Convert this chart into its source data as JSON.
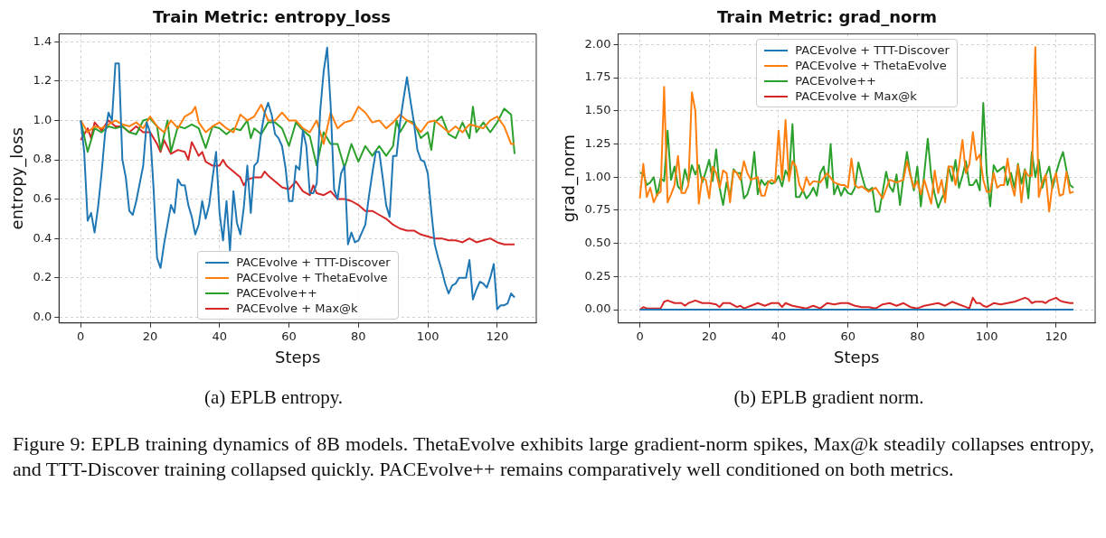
{
  "chart_data": [
    {
      "type": "line",
      "title": "Train Metric: entropy_loss",
      "xlabel": "Steps",
      "ylabel": "entropy_loss",
      "x": [
        0,
        1,
        2,
        3,
        4,
        5,
        6,
        7,
        8,
        9,
        10,
        11,
        12,
        13,
        14,
        15,
        16,
        17,
        18,
        19,
        20,
        21,
        22,
        23,
        24,
        25,
        26,
        27,
        28,
        29,
        30,
        31,
        32,
        33,
        34,
        35,
        36,
        37,
        38,
        39,
        40,
        41,
        42,
        43,
        44,
        45,
        46,
        47,
        48,
        49,
        50,
        51,
        52,
        53,
        54,
        55,
        56,
        57,
        58,
        59,
        60,
        61,
        62,
        63,
        64,
        65,
        66,
        67,
        68,
        69,
        70,
        71,
        72,
        73,
        74,
        75,
        76,
        77,
        78,
        79,
        80,
        81,
        82,
        83,
        84,
        85,
        86,
        87,
        88,
        89,
        90,
        91,
        92,
        93,
        94,
        95,
        96,
        97,
        98,
        99,
        100,
        101,
        102,
        103,
        104,
        105,
        106,
        107,
        108,
        109,
        110,
        111,
        112,
        113,
        114,
        115,
        116,
        117,
        118,
        119,
        120,
        121,
        122,
        123,
        124,
        125
      ],
      "series": [
        {
          "name": "PACEvolve + TTT-Discover",
          "color": "#1f77b4",
          "values": [
            1.0,
            0.84,
            0.49,
            0.53,
            0.43,
            0.56,
            0.73,
            0.93,
            1.04,
            1.0,
            1.29,
            1.29,
            0.8,
            0.71,
            0.54,
            0.52,
            0.59,
            0.68,
            0.77,
            0.99,
            0.94,
            0.65,
            0.3,
            0.25,
            0.37,
            0.47,
            0.57,
            0.53,
            0.7,
            0.67,
            0.67,
            0.57,
            0.51,
            0.42,
            0.47,
            0.59,
            0.5,
            0.57,
            0.71,
            0.84,
            0.53,
            0.39,
            0.59,
            0.34,
            0.64,
            0.48,
            0.42,
            0.56,
            0.77,
            0.53,
            0.77,
            0.79,
            0.94,
            1.04,
            1.09,
            1.03,
            0.93,
            0.91,
            0.87,
            0.76,
            0.59,
            0.59,
            0.77,
            0.75,
            0.95,
            0.87,
            0.63,
            0.63,
            0.68,
            1.05,
            1.25,
            1.37,
            1.08,
            0.65,
            0.6,
            0.73,
            0.77,
            0.37,
            0.43,
            0.38,
            0.39,
            0.43,
            0.47,
            0.61,
            0.73,
            0.84,
            0.84,
            0.71,
            0.57,
            0.51,
            0.82,
            0.82,
            0.99,
            1.11,
            1.22,
            1.1,
            0.99,
            0.85,
            0.8,
            0.79,
            0.73,
            0.54,
            0.37,
            0.3,
            0.24,
            0.17,
            0.12,
            0.16,
            0.17,
            0.2,
            0.2,
            0.2,
            0.29,
            0.09,
            0.14,
            0.18,
            0.17,
            0.15,
            0.2,
            0.27,
            0.04,
            0.06,
            0.06,
            0.07,
            0.12,
            0.1
          ]
        },
        {
          "name": "PACEvolve + ThetaEvolve",
          "color": "#ff7f0e",
          "x": [
            0,
            2,
            4,
            6,
            8,
            10,
            12,
            14,
            16,
            18,
            20,
            22,
            24,
            26,
            28,
            30,
            32,
            33,
            34,
            36,
            38,
            40,
            42,
            44,
            46,
            48,
            50,
            52,
            54,
            56,
            58,
            60,
            62,
            64,
            66,
            68,
            70,
            72,
            74,
            76,
            78,
            80,
            82,
            84,
            86,
            88,
            90,
            92,
            94,
            96,
            98,
            100,
            102,
            104,
            106,
            108,
            110,
            112,
            114,
            116,
            118,
            120,
            122,
            124,
            125
          ],
          "values": [
            1.0,
            0.94,
            0.97,
            0.96,
            0.98,
            1.0,
            0.98,
            0.97,
            0.99,
            0.96,
            1.02,
            0.97,
            0.94,
            1.0,
            0.96,
            1.02,
            1.04,
            1.07,
            0.99,
            0.94,
            0.97,
            0.99,
            0.96,
            0.94,
            1.03,
            1.0,
            1.02,
            1.08,
            1.0,
            1.0,
            1.04,
            1.0,
            1.0,
            0.96,
            0.94,
            1.0,
            0.88,
            1.04,
            0.96,
            0.99,
            1.0,
            1.07,
            1.04,
            0.99,
            1.0,
            0.96,
            0.99,
            1.03,
            1.0,
            0.98,
            0.94,
            0.99,
            1.0,
            0.97,
            0.94,
            0.97,
            0.94,
            0.98,
            0.97,
            0.96,
            1.0,
            1.02,
            0.97,
            0.88,
            0.88
          ]
        },
        {
          "name": "PACEvolve++",
          "color": "#2ca02c",
          "x": [
            0,
            2,
            4,
            6,
            8,
            10,
            12,
            14,
            16,
            18,
            20,
            22,
            23,
            25,
            26,
            28,
            30,
            32,
            34,
            36,
            38,
            40,
            42,
            44,
            46,
            48,
            49,
            50,
            52,
            54,
            56,
            58,
            60,
            62,
            64,
            66,
            68,
            70,
            72,
            74,
            76,
            78,
            80,
            82,
            84,
            86,
            88,
            90,
            91,
            92,
            94,
            96,
            98,
            100,
            101,
            102,
            104,
            106,
            108,
            110,
            112,
            113,
            114,
            116,
            118,
            120,
            122,
            124,
            125
          ],
          "values": [
            1.0,
            0.84,
            0.96,
            0.94,
            0.97,
            0.96,
            0.97,
            0.94,
            0.93,
            1.0,
            1.01,
            0.97,
            0.85,
            1.0,
            0.84,
            0.97,
            0.96,
            0.98,
            0.96,
            0.86,
            0.97,
            0.96,
            0.93,
            0.96,
            0.95,
            1.0,
            0.91,
            0.96,
            0.93,
            0.99,
            0.99,
            0.96,
            0.87,
            0.99,
            0.95,
            0.92,
            0.77,
            0.94,
            0.88,
            0.88,
            0.76,
            0.88,
            0.79,
            0.87,
            0.82,
            0.87,
            0.82,
            0.87,
            1.0,
            0.94,
            1.0,
            0.99,
            0.91,
            0.94,
            0.85,
            0.99,
            1.02,
            0.93,
            0.91,
            0.99,
            0.91,
            1.07,
            0.94,
            0.99,
            0.94,
            0.99,
            1.06,
            1.03,
            0.83
          ]
        },
        {
          "name": "PACEvolve + Max@k",
          "color": "#d62728",
          "x": [
            0,
            2,
            3,
            4,
            6,
            8,
            10,
            12,
            14,
            16,
            18,
            20,
            22,
            23,
            24,
            26,
            28,
            30,
            31,
            32,
            34,
            35,
            36,
            38,
            40,
            41,
            42,
            44,
            46,
            47,
            48,
            50,
            52,
            53,
            54,
            56,
            58,
            60,
            62,
            64,
            66,
            67,
            68,
            70,
            72,
            74,
            76,
            78,
            80,
            82,
            84,
            86,
            88,
            90,
            92,
            94,
            96,
            98,
            100,
            102,
            104,
            106,
            108,
            110,
            112,
            114,
            116,
            118,
            120,
            122,
            124,
            125
          ],
          "values": [
            0.9,
            0.96,
            0.91,
            0.99,
            0.95,
            1.0,
            0.97,
            0.97,
            0.94,
            0.97,
            0.94,
            0.94,
            0.88,
            0.84,
            0.9,
            0.83,
            0.85,
            0.84,
            0.8,
            0.89,
            0.82,
            0.84,
            0.79,
            0.77,
            0.77,
            0.8,
            0.77,
            0.74,
            0.71,
            0.67,
            0.7,
            0.71,
            0.71,
            0.74,
            0.72,
            0.69,
            0.66,
            0.65,
            0.69,
            0.64,
            0.62,
            0.67,
            0.63,
            0.62,
            0.64,
            0.6,
            0.6,
            0.59,
            0.57,
            0.54,
            0.54,
            0.52,
            0.5,
            0.47,
            0.45,
            0.44,
            0.44,
            0.42,
            0.41,
            0.4,
            0.4,
            0.39,
            0.39,
            0.38,
            0.4,
            0.38,
            0.39,
            0.4,
            0.38,
            0.37,
            0.37,
            0.37
          ]
        }
      ],
      "xlim": [
        -6.25,
        131.25
      ],
      "xticks": [
        0,
        20,
        40,
        60,
        80,
        100,
        120
      ],
      "ylim": [
        -0.03,
        1.44
      ],
      "yticks": [
        {
          "value": 0,
          "label": "0.0"
        },
        {
          "value": 0.2,
          "label": "0.2"
        },
        {
          "value": 0.4,
          "label": "0.4"
        },
        {
          "value": 0.6,
          "label": "0.6"
        },
        {
          "value": 0.8,
          "label": "0.8"
        },
        {
          "value": 1,
          "label": "1.0"
        },
        {
          "value": 1.2,
          "label": "1.2"
        },
        {
          "value": 1.4,
          "label": "1.4"
        }
      ],
      "grid": true,
      "legend": "bottom",
      "annotations": [
        "(a) EPLB entropy.",
        "Figure 9: EPLB training dynamics of 8B models. ThetaEvolve exhibits large gradient-norm spikes, Max@k steadily collapses entropy, and TTT-Discover training collapsed quickly. PACEvolve++ remains comparatively well conditioned on both metrics."
      ]
    },
    {
      "type": "line",
      "title": "Train Metric: grad_norm",
      "xlabel": "Steps",
      "ylabel": "grad_norm",
      "x": [
        0,
        1,
        2,
        3,
        4,
        5,
        6,
        7,
        8,
        9,
        10,
        11,
        12,
        13,
        14,
        15,
        16,
        17,
        18,
        19,
        20,
        21,
        22,
        23,
        24,
        25,
        26,
        27,
        28,
        29,
        30,
        31,
        32,
        33,
        34,
        35,
        36,
        37,
        38,
        39,
        40,
        41,
        42,
        43,
        44,
        45,
        46,
        47,
        48,
        49,
        50,
        51,
        52,
        53,
        54,
        55,
        56,
        57,
        58,
        59,
        60,
        61,
        62,
        63,
        64,
        65,
        66,
        67,
        68,
        69,
        70,
        71,
        72,
        73,
        74,
        75,
        76,
        77,
        78,
        79,
        80,
        81,
        82,
        83,
        84,
        85,
        86,
        87,
        88,
        89,
        90,
        91,
        92,
        93,
        94,
        95,
        96,
        97,
        98,
        99,
        100,
        101,
        102,
        103,
        104,
        105,
        106,
        107,
        108,
        109,
        110,
        111,
        112,
        113,
        114,
        115,
        116,
        117,
        118,
        119,
        120,
        121,
        122,
        123,
        124,
        125
      ],
      "series": [
        {
          "name": "PACEvolve + TTT-Discover",
          "color": "#1f77b4",
          "x": [
            0,
            125
          ],
          "values": [
            0,
            0
          ]
        },
        {
          "name": "PACEvolve + ThetaEvolve",
          "color": "#ff7f0e",
          "x": [
            0,
            1,
            2,
            3,
            4,
            5,
            6,
            7,
            8,
            9,
            10,
            11,
            12,
            13,
            14,
            15,
            16,
            17,
            18,
            19,
            20,
            21,
            22,
            23,
            24,
            25,
            26,
            27,
            28,
            29,
            30,
            31,
            32,
            34,
            35,
            36,
            37,
            38,
            39,
            40,
            41,
            42,
            43,
            44,
            45,
            46,
            47,
            48,
            49,
            50,
            52,
            54,
            56,
            58,
            59,
            60,
            61,
            62,
            63,
            64,
            66,
            68,
            70,
            72,
            74,
            76,
            77,
            78,
            79,
            80,
            81,
            82,
            84,
            85,
            86,
            87,
            88,
            89,
            90,
            91,
            92,
            93,
            94,
            95,
            96,
            97,
            98,
            99,
            100,
            101,
            102,
            103,
            104,
            105,
            106,
            107,
            108,
            109,
            110,
            111,
            112,
            113,
            114,
            115,
            116,
            117,
            118,
            119,
            120,
            121,
            122,
            123,
            124,
            125
          ],
          "values": [
            0.84,
            1.1,
            0.85,
            0.92,
            0.81,
            0.87,
            0.89,
            1.68,
            0.81,
            0.87,
            0.94,
            1.16,
            0.88,
            0.88,
            0.94,
            1.64,
            1.5,
            0.8,
            1.0,
            0.98,
            0.84,
            1.08,
            1.03,
            0.92,
            1.05,
            1.03,
            0.81,
            1.05,
            1.03,
            0.98,
            1.12,
            1.03,
            0.98,
            1.0,
            0.86,
            0.86,
            0.96,
            0.98,
            0.96,
            1.35,
            0.98,
            1.43,
            0.97,
            1.12,
            1.08,
            0.94,
            0.89,
            1.0,
            0.94,
            0.97,
            0.96,
            1.03,
            0.96,
            0.94,
            0.94,
            0.92,
            1.14,
            0.94,
            0.92,
            0.93,
            0.89,
            0.92,
            0.84,
            0.98,
            0.96,
            0.98,
            1.12,
            1.01,
            0.92,
            0.97,
            0.87,
            0.98,
            0.8,
            1.05,
            0.88,
            0.98,
            0.81,
            1.08,
            1.08,
            0.94,
            1.08,
            1.28,
            1.03,
            1.1,
            1.34,
            1.13,
            1.17,
            0.98,
            0.89,
            0.89,
            1.03,
            0.92,
            0.94,
            0.94,
            1.14,
            0.96,
            0.86,
            1.09,
            0.81,
            1.05,
            1.01,
            1.01,
            1.98,
            0.85,
            0.96,
            1.02,
            0.74,
            0.96,
            1.03,
            0.86,
            0.87,
            1.04,
            0.88,
            0.89
          ]
        },
        {
          "name": "PACEvolve++",
          "color": "#2ca02c",
          "values": [
            1.03,
            1.03,
            0.94,
            0.96,
            1.0,
            0.86,
            0.99,
            0.97,
            1.35,
            0.98,
            1.08,
            0.93,
            0.9,
            1.06,
            0.96,
            1.09,
            1.02,
            1.09,
            0.96,
            1.04,
            1.13,
            0.97,
            1.21,
            0.92,
            0.79,
            0.96,
            0.85,
            1.06,
            1.03,
            1.03,
            0.84,
            0.87,
            0.96,
            1.19,
            0.87,
            0.98,
            0.94,
            0.97,
            0.95,
            0.96,
            1.01,
            0.93,
            1.05,
            1.0,
            1.4,
            0.85,
            0.85,
            0.9,
            0.84,
            0.87,
            0.92,
            0.86,
            1.03,
            1.08,
            0.92,
            1.25,
            0.87,
            0.94,
            0.86,
            0.92,
            0.88,
            0.87,
            0.92,
            1.11,
            1.01,
            0.92,
            0.9,
            0.92,
            0.74,
            0.74,
            0.89,
            1.04,
            0.93,
            0.89,
            1.02,
            0.79,
            1.01,
            1.19,
            1.02,
            0.9,
            1.08,
            0.78,
            1.03,
            1.29,
            1.01,
            0.87,
            0.77,
            0.84,
            0.89,
            1.08,
            0.97,
            1.13,
            0.92,
            1.01,
            1.12,
            0.94,
            0.94,
            0.98,
            0.9,
            1.56,
            1.03,
            0.78,
            1.09,
            1.04,
            1.06,
            1.08,
            0.94,
            1.03,
            0.92,
            1.1,
            0.95,
            1.06,
            0.84,
            1.19,
            1.0,
            1.13,
            0.92,
            1.01,
            1.08,
            0.92,
            1.03,
            1.12,
            1.19,
            1.05,
            0.94,
            0.92
          ]
        },
        {
          "name": "PACEvolve + Max@k",
          "color": "#d62728",
          "x": [
            0,
            1,
            2,
            4,
            6,
            7,
            8,
            10,
            12,
            13,
            14,
            16,
            18,
            20,
            22,
            23,
            24,
            26,
            28,
            29,
            30,
            32,
            34,
            36,
            38,
            40,
            41,
            42,
            44,
            46,
            48,
            50,
            52,
            54,
            56,
            58,
            60,
            62,
            64,
            66,
            68,
            70,
            72,
            74,
            76,
            78,
            80,
            82,
            84,
            86,
            88,
            90,
            92,
            94,
            95,
            96,
            97,
            98,
            99,
            100,
            102,
            104,
            106,
            108,
            110,
            111,
            112,
            113,
            114,
            116,
            117,
            118,
            120,
            121,
            122,
            124,
            125
          ],
          "values": [
            0.0,
            0.02,
            0.01,
            0.01,
            0.01,
            0.06,
            0.07,
            0.05,
            0.05,
            0.03,
            0.05,
            0.07,
            0.05,
            0.05,
            0.04,
            0.02,
            0.05,
            0.05,
            0.02,
            0.03,
            0.01,
            0.03,
            0.05,
            0.03,
            0.05,
            0.05,
            0.02,
            0.05,
            0.03,
            0.02,
            0.01,
            0.03,
            0.01,
            0.05,
            0.04,
            0.05,
            0.05,
            0.03,
            0.02,
            0.02,
            0.01,
            0.04,
            0.05,
            0.03,
            0.05,
            0.02,
            0.01,
            0.03,
            0.04,
            0.05,
            0.03,
            0.06,
            0.04,
            0.02,
            0.01,
            0.09,
            0.05,
            0.05,
            0.03,
            0.02,
            0.05,
            0.04,
            0.05,
            0.06,
            0.08,
            0.09,
            0.08,
            0.05,
            0.06,
            0.06,
            0.05,
            0.07,
            0.09,
            0.07,
            0.06,
            0.05,
            0.05
          ]
        }
      ],
      "xlim": [
        -6.25,
        131.25
      ],
      "xticks": [
        0,
        20,
        40,
        60,
        80,
        100,
        120
      ],
      "ylim": [
        -0.1,
        2.08
      ],
      "yticks": [
        {
          "value": 0,
          "label": "0.00"
        },
        {
          "value": 0.25,
          "label": "0.25"
        },
        {
          "value": 0.5,
          "label": "0.50"
        },
        {
          "value": 0.75,
          "label": "0.75"
        },
        {
          "value": 1,
          "label": "1.00"
        },
        {
          "value": 1.25,
          "label": "1.25"
        },
        {
          "value": 1.5,
          "label": "1.50"
        },
        {
          "value": 1.75,
          "label": "1.75"
        },
        {
          "value": 2,
          "label": "2.00"
        }
      ],
      "grid": true,
      "legend": "top",
      "annotations": [
        "(b) EPLB gradient norm."
      ]
    }
  ]
}
